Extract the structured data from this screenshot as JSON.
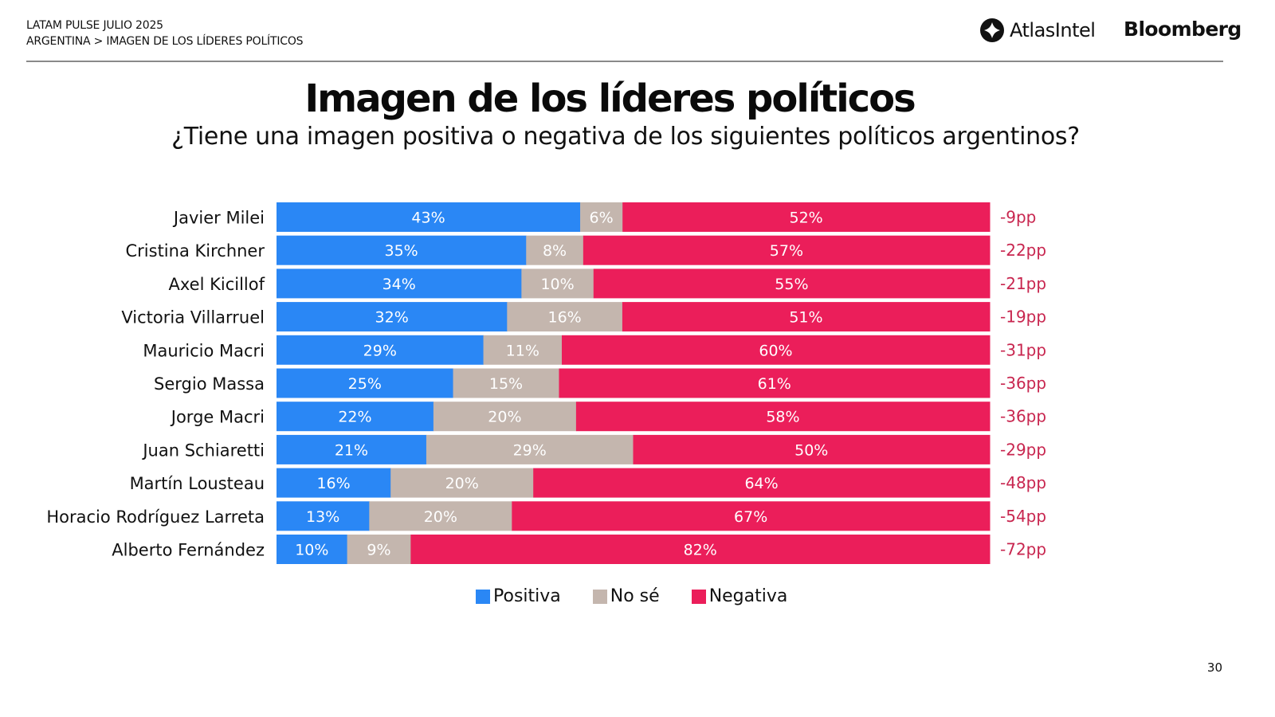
{
  "header": {
    "line1": "LATAM PULSE JULIO 2025",
    "line2": "ARGENTINA > IMAGEN DE LOS LÍDERES POLÍTICOS",
    "logo_atlas": "AtlasIntel",
    "logo_bloomberg": "Bloomberg"
  },
  "page_number": "30",
  "colors": {
    "positiva": "#2a87f5",
    "nose": "#c4b6ae",
    "negativa": "#eb1e5a",
    "net": "#c8264f"
  },
  "chart_data": {
    "type": "bar",
    "orientation": "horizontal-stacked-100",
    "title": "Imagen de los líderes políticos",
    "subtitle": "¿Tiene una imagen positiva o negativa de los siguientes políticos argentinos?",
    "xlabel": "",
    "ylabel": "",
    "legend_position": "bottom",
    "categories": [
      "Javier Milei",
      "Cristina Kirchner",
      "Axel Kicillof",
      "Victoria Villarruel",
      "Mauricio Macri",
      "Sergio Massa",
      "Jorge Macri",
      "Juan Schiaretti",
      "Martín Lousteau",
      "Horacio Rodríguez Larreta",
      "Alberto Fernández"
    ],
    "series": [
      {
        "name": "Positiva",
        "key": "positiva",
        "values": [
          43,
          35,
          34,
          32,
          29,
          25,
          22,
          21,
          16,
          13,
          10
        ]
      },
      {
        "name": "No sé",
        "key": "nose",
        "values": [
          6,
          8,
          10,
          16,
          11,
          15,
          20,
          29,
          20,
          20,
          9
        ]
      },
      {
        "name": "Negativa",
        "key": "negativa",
        "values": [
          52,
          57,
          55,
          51,
          60,
          61,
          58,
          50,
          64,
          67,
          82
        ]
      }
    ],
    "net_labels": [
      "-9pp",
      "-22pp",
      "-21pp",
      "-19pp",
      "-31pp",
      "-36pp",
      "-36pp",
      "-29pp",
      "-48pp",
      "-54pp",
      "-72pp"
    ],
    "value_suffix": "%"
  }
}
